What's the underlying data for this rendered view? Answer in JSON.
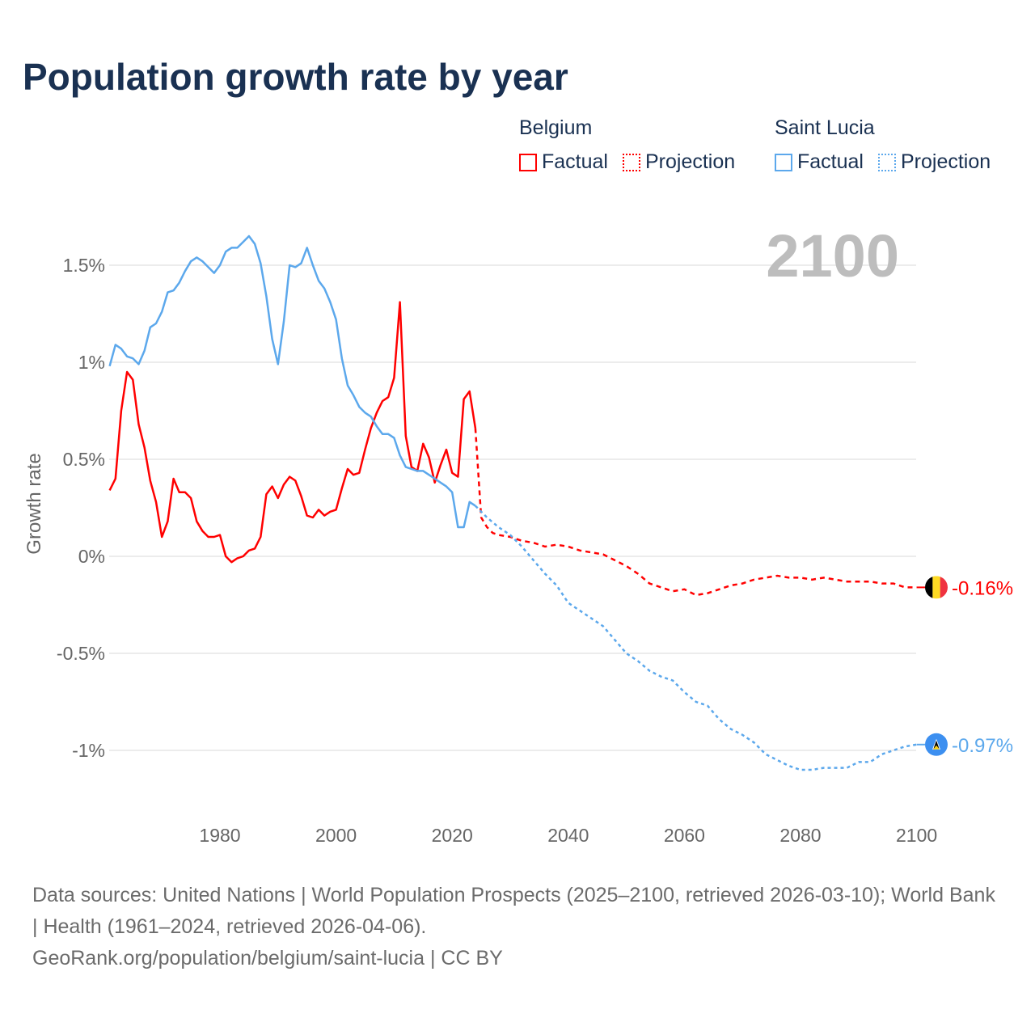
{
  "title": "Population growth rate by year",
  "legend": {
    "groups": [
      {
        "name": "Belgium",
        "factual": "Factual",
        "projection": "Projection",
        "color": "#ff0000"
      },
      {
        "name": "Saint Lucia",
        "factual": "Factual",
        "projection": "Projection",
        "color": "#5ca8ec"
      }
    ]
  },
  "year_label": "2100",
  "footer": {
    "sources": "Data sources: United Nations | World Population Prospects (2025–2100, retrieved 2026-03-10); World Bank | Health (1961–2024, retrieved 2026-04-06).",
    "credit": "GeoRank.org/population/belgium/saint-lucia | CC BY"
  },
  "chart_data": {
    "type": "line",
    "title": "Population growth rate by year",
    "xlabel": "",
    "ylabel": "Growth rate",
    "xlim": [
      1961,
      2100
    ],
    "ylim": [
      -1.25,
      1.75
    ],
    "x_ticks": [
      1980,
      2000,
      2020,
      2040,
      2060,
      2080,
      2100
    ],
    "x_tick_labels": [
      "1980",
      "2000",
      "2020",
      "2040",
      "2060",
      "2080",
      "2100"
    ],
    "y_ticks": [
      1.5,
      1,
      0.5,
      0,
      -0.5,
      -1
    ],
    "y_tick_labels": [
      "1.5%",
      "1%",
      "0.5%",
      "0%",
      "-0.5%",
      "-1%"
    ],
    "grid": true,
    "legend_position": "top-right",
    "series": [
      {
        "name": "Belgium",
        "color": "#ff0000",
        "end_label": "-0.16%",
        "flag": "belgium-flag",
        "factual_start": 1961,
        "factual": [
          0.34,
          0.4,
          0.75,
          0.95,
          0.91,
          0.68,
          0.56,
          0.39,
          0.28,
          0.1,
          0.18,
          0.4,
          0.33,
          0.33,
          0.3,
          0.18,
          0.13,
          0.1,
          0.1,
          0.11,
          0.0,
          -0.03,
          -0.01,
          0.0,
          0.03,
          0.04,
          0.1,
          0.32,
          0.36,
          0.3,
          0.37,
          0.41,
          0.39,
          0.31,
          0.21,
          0.2,
          0.24,
          0.21,
          0.23,
          0.24,
          0.35,
          0.45,
          0.42,
          0.43,
          0.55,
          0.66,
          0.74,
          0.8,
          0.82,
          0.92,
          1.31,
          0.62,
          0.46,
          0.44,
          0.58,
          0.51,
          0.38,
          0.47,
          0.55,
          0.43,
          0.41,
          0.81,
          0.85,
          0.66
        ],
        "projection": [
          [
            2024,
            0.66
          ],
          [
            2025,
            0.2
          ],
          [
            2026,
            0.15
          ],
          [
            2027,
            0.12
          ],
          [
            2028,
            0.11
          ],
          [
            2030,
            0.1
          ],
          [
            2032,
            0.08
          ],
          [
            2034,
            0.07
          ],
          [
            2036,
            0.05
          ],
          [
            2038,
            0.06
          ],
          [
            2040,
            0.05
          ],
          [
            2042,
            0.03
          ],
          [
            2044,
            0.02
          ],
          [
            2046,
            0.01
          ],
          [
            2048,
            -0.02
          ],
          [
            2050,
            -0.05
          ],
          [
            2052,
            -0.09
          ],
          [
            2054,
            -0.14
          ],
          [
            2056,
            -0.16
          ],
          [
            2058,
            -0.18
          ],
          [
            2060,
            -0.17
          ],
          [
            2062,
            -0.2
          ],
          [
            2064,
            -0.19
          ],
          [
            2066,
            -0.17
          ],
          [
            2068,
            -0.15
          ],
          [
            2070,
            -0.14
          ],
          [
            2072,
            -0.12
          ],
          [
            2074,
            -0.11
          ],
          [
            2076,
            -0.1
          ],
          [
            2078,
            -0.11
          ],
          [
            2080,
            -0.11
          ],
          [
            2082,
            -0.12
          ],
          [
            2084,
            -0.11
          ],
          [
            2086,
            -0.12
          ],
          [
            2088,
            -0.13
          ],
          [
            2090,
            -0.13
          ],
          [
            2092,
            -0.13
          ],
          [
            2094,
            -0.14
          ],
          [
            2096,
            -0.14
          ],
          [
            2098,
            -0.16
          ],
          [
            2100,
            -0.16
          ]
        ]
      },
      {
        "name": "Saint Lucia",
        "color": "#5ca8ec",
        "end_label": "-0.97%",
        "flag": "saint-lucia-flag",
        "factual_start": 1961,
        "factual": [
          0.98,
          1.09,
          1.07,
          1.03,
          1.02,
          0.99,
          1.06,
          1.18,
          1.2,
          1.26,
          1.36,
          1.37,
          1.41,
          1.47,
          1.52,
          1.54,
          1.52,
          1.49,
          1.46,
          1.5,
          1.57,
          1.59,
          1.59,
          1.62,
          1.65,
          1.61,
          1.51,
          1.34,
          1.12,
          0.99,
          1.21,
          1.5,
          1.49,
          1.51,
          1.59,
          1.5,
          1.42,
          1.38,
          1.31,
          1.22,
          1.02,
          0.88,
          0.83,
          0.77,
          0.74,
          0.72,
          0.67,
          0.63,
          0.63,
          0.61,
          0.52,
          0.46,
          0.45,
          0.44,
          0.44,
          0.42,
          0.4,
          0.38,
          0.36,
          0.33,
          0.15,
          0.15,
          0.28,
          0.26
        ],
        "projection": [
          [
            2024,
            0.26
          ],
          [
            2026,
            0.2
          ],
          [
            2028,
            0.15
          ],
          [
            2030,
            0.11
          ],
          [
            2032,
            0.05
          ],
          [
            2034,
            -0.02
          ],
          [
            2036,
            -0.09
          ],
          [
            2038,
            -0.15
          ],
          [
            2040,
            -0.24
          ],
          [
            2042,
            -0.28
          ],
          [
            2044,
            -0.32
          ],
          [
            2046,
            -0.36
          ],
          [
            2048,
            -0.43
          ],
          [
            2050,
            -0.5
          ],
          [
            2052,
            -0.54
          ],
          [
            2054,
            -0.59
          ],
          [
            2056,
            -0.62
          ],
          [
            2058,
            -0.64
          ],
          [
            2060,
            -0.7
          ],
          [
            2062,
            -0.75
          ],
          [
            2064,
            -0.77
          ],
          [
            2066,
            -0.84
          ],
          [
            2068,
            -0.89
          ],
          [
            2070,
            -0.92
          ],
          [
            2072,
            -0.96
          ],
          [
            2074,
            -1.02
          ],
          [
            2076,
            -1.05
          ],
          [
            2078,
            -1.08
          ],
          [
            2080,
            -1.1
          ],
          [
            2082,
            -1.1
          ],
          [
            2084,
            -1.09
          ],
          [
            2086,
            -1.09
          ],
          [
            2088,
            -1.09
          ],
          [
            2090,
            -1.06
          ],
          [
            2092,
            -1.06
          ],
          [
            2094,
            -1.02
          ],
          [
            2096,
            -1.0
          ],
          [
            2098,
            -0.98
          ],
          [
            2100,
            -0.97
          ]
        ]
      }
    ]
  }
}
